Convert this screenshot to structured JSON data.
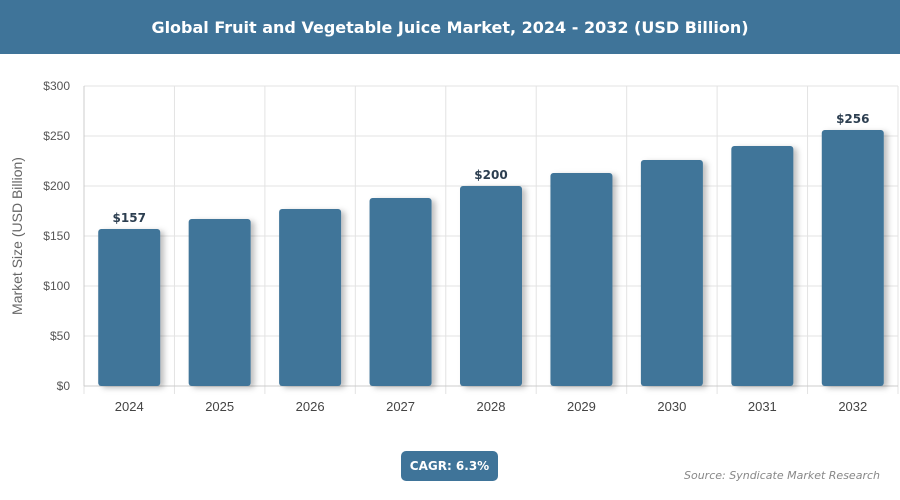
{
  "chart_data": {
    "type": "bar",
    "title": "Global Fruit and Vegetable Juice Market, 2024 - 2032 (USD Billion)",
    "xlabel": "",
    "ylabel": "Market Size (USD Billion)",
    "categories": [
      "2024",
      "2025",
      "2026",
      "2027",
      "2028",
      "2029",
      "2030",
      "2031",
      "2032"
    ],
    "values": [
      157,
      167,
      177,
      188,
      200,
      213,
      226,
      240,
      256
    ],
    "data_labels": {
      "0": "$157",
      "4": "$200",
      "8": "$256"
    },
    "ylim": [
      0,
      300
    ],
    "yticks": [
      "$0",
      "$50",
      "$100",
      "$150",
      "$200",
      "$250",
      "$300"
    ],
    "grid": true,
    "bar_color": "#3f7499"
  },
  "cagr": "CAGR: 6.3%",
  "source": "Source: Syndicate Market Research"
}
